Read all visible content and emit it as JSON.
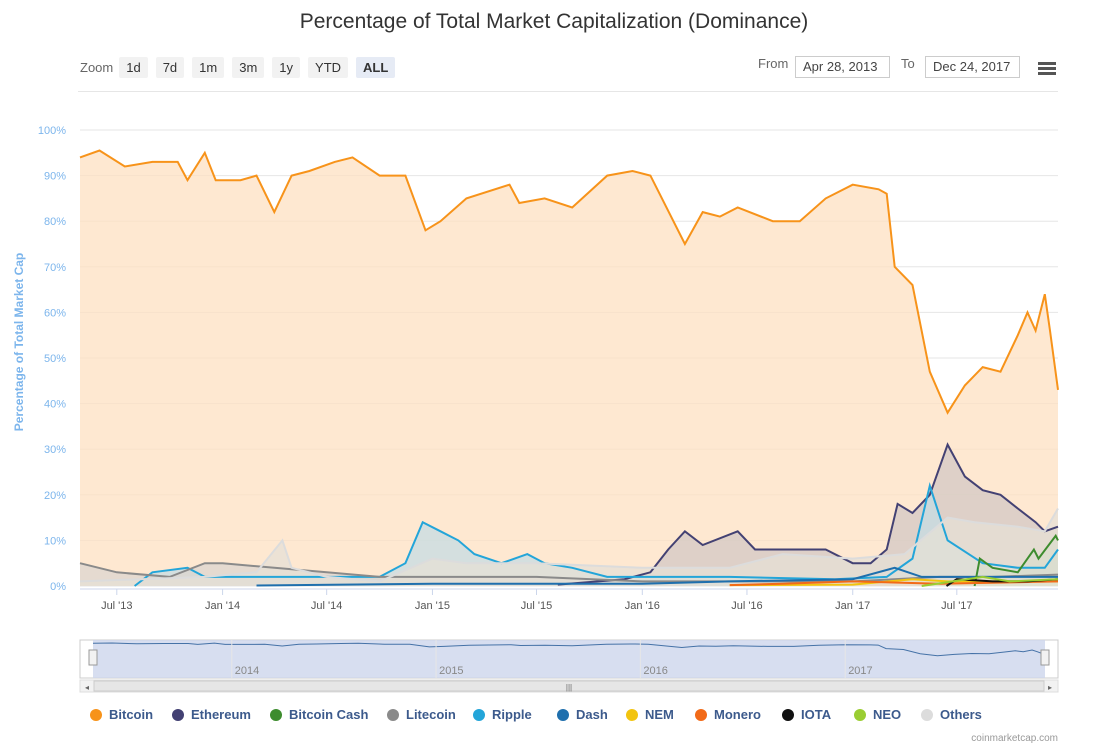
{
  "title": "Percentage of Total Market Capitalization (Dominance)",
  "zoom": {
    "label": "Zoom",
    "buttons": [
      "1d",
      "7d",
      "1m",
      "3m",
      "1y",
      "YTD",
      "ALL"
    ],
    "active": "ALL"
  },
  "range": {
    "from_label": "From",
    "from": "Apr 28, 2013",
    "to_label": "To",
    "to": "Dec 24, 2017"
  },
  "credit": "coinmarketcap.com",
  "navigator": {
    "year_labels": [
      "2014",
      "2015",
      "2016",
      "2017"
    ]
  },
  "colors": {
    "bitcoin": "#f7931a",
    "ethereum": "#434173",
    "bitcoin_cash": "#3d8c2e",
    "litecoin": "#8a8a8a",
    "ripple": "#23a5d9",
    "dash": "#1f6fad",
    "nem": "#f2c40f",
    "monero": "#f26a18",
    "iota": "#111111",
    "neo": "#9acd32",
    "others": "#dcdcdc"
  },
  "chart_data": {
    "type": "area",
    "title": "Percentage of Total Market Capitalization (Dominance)",
    "ylabel": "Percentage of Total Market Cap",
    "ylim": [
      0,
      100
    ],
    "y_ticks": [
      "0%",
      "10%",
      "20%",
      "30%",
      "40%",
      "50%",
      "60%",
      "70%",
      "80%",
      "90%",
      "100%"
    ],
    "x_ticks": [
      {
        "label": "Jul '13",
        "date": "2013-07-01"
      },
      {
        "label": "Jan '14",
        "date": "2014-01-01"
      },
      {
        "label": "Jul '14",
        "date": "2014-07-01"
      },
      {
        "label": "Jan '15",
        "date": "2015-01-01"
      },
      {
        "label": "Jul '15",
        "date": "2015-07-01"
      },
      {
        "label": "Jan '16",
        "date": "2016-01-01"
      },
      {
        "label": "Jul '16",
        "date": "2016-07-01"
      },
      {
        "label": "Jan '17",
        "date": "2017-01-01"
      },
      {
        "label": "Jul '17",
        "date": "2017-07-01"
      }
    ],
    "x_range": [
      "2013-04-28",
      "2017-12-24"
    ],
    "legend_position": "bottom",
    "grid": true,
    "series": [
      {
        "name": "Bitcoin",
        "color": "#f7931a",
        "fill": "#fde0c2",
        "points": [
          [
            "2013-04-28",
            94
          ],
          [
            "2013-06-01",
            95.5
          ],
          [
            "2013-07-15",
            92
          ],
          [
            "2013-09-01",
            93
          ],
          [
            "2013-10-15",
            93
          ],
          [
            "2013-11-01",
            89
          ],
          [
            "2013-12-01",
            95
          ],
          [
            "2013-12-20",
            89
          ],
          [
            "2014-02-01",
            89
          ],
          [
            "2014-03-01",
            90
          ],
          [
            "2014-04-01",
            82
          ],
          [
            "2014-05-01",
            90
          ],
          [
            "2014-06-01",
            91
          ],
          [
            "2014-07-15",
            93
          ],
          [
            "2014-08-15",
            94
          ],
          [
            "2014-10-01",
            90
          ],
          [
            "2014-11-15",
            90
          ],
          [
            "2014-12-20",
            78
          ],
          [
            "2015-01-15",
            80
          ],
          [
            "2015-03-01",
            85
          ],
          [
            "2015-05-15",
            88
          ],
          [
            "2015-06-01",
            84
          ],
          [
            "2015-07-15",
            85
          ],
          [
            "2015-09-01",
            83
          ],
          [
            "2015-11-01",
            90
          ],
          [
            "2015-12-15",
            91
          ],
          [
            "2016-01-15",
            90
          ],
          [
            "2016-03-15",
            75
          ],
          [
            "2016-04-15",
            82
          ],
          [
            "2016-05-15",
            81
          ],
          [
            "2016-06-15",
            83
          ],
          [
            "2016-08-15",
            80
          ],
          [
            "2016-10-01",
            80
          ],
          [
            "2016-11-15",
            85
          ],
          [
            "2017-01-01",
            88
          ],
          [
            "2017-02-15",
            87
          ],
          [
            "2017-03-01",
            86
          ],
          [
            "2017-03-15",
            70
          ],
          [
            "2017-04-15",
            66
          ],
          [
            "2017-05-15",
            47
          ],
          [
            "2017-06-15",
            38
          ],
          [
            "2017-07-15",
            44
          ],
          [
            "2017-08-15",
            48
          ],
          [
            "2017-09-15",
            47
          ],
          [
            "2017-10-15",
            55
          ],
          [
            "2017-11-01",
            60
          ],
          [
            "2017-11-15",
            56
          ],
          [
            "2017-12-01",
            64
          ],
          [
            "2017-12-10",
            56
          ],
          [
            "2017-12-24",
            43
          ]
        ]
      },
      {
        "name": "Ethereum",
        "color": "#434173",
        "fill": "#d3c8c4",
        "points": [
          [
            "2015-08-07",
            0.3
          ],
          [
            "2015-12-01",
            1.5
          ],
          [
            "2016-01-15",
            3
          ],
          [
            "2016-02-15",
            8
          ],
          [
            "2016-03-15",
            12
          ],
          [
            "2016-04-15",
            9
          ],
          [
            "2016-06-15",
            12
          ],
          [
            "2016-07-15",
            8
          ],
          [
            "2016-09-15",
            8
          ],
          [
            "2016-11-15",
            8
          ],
          [
            "2017-01-01",
            5
          ],
          [
            "2017-02-01",
            5
          ],
          [
            "2017-03-01",
            8
          ],
          [
            "2017-03-20",
            18
          ],
          [
            "2017-04-15",
            16
          ],
          [
            "2017-05-15",
            20
          ],
          [
            "2017-06-15",
            31
          ],
          [
            "2017-07-15",
            24
          ],
          [
            "2017-08-15",
            21
          ],
          [
            "2017-09-15",
            20
          ],
          [
            "2017-10-15",
            17
          ],
          [
            "2017-11-15",
            14
          ],
          [
            "2017-12-01",
            12
          ],
          [
            "2017-12-24",
            13
          ]
        ]
      },
      {
        "name": "Ripple",
        "color": "#23a5d9",
        "fill": "#c6dce3",
        "points": [
          [
            "2013-08-01",
            0
          ],
          [
            "2013-09-01",
            3
          ],
          [
            "2013-11-01",
            4
          ],
          [
            "2013-12-01",
            2
          ],
          [
            "2014-06-01",
            2
          ],
          [
            "2014-10-01",
            2
          ],
          [
            "2014-11-15",
            5
          ],
          [
            "2014-12-15",
            14
          ],
          [
            "2015-01-15",
            12
          ],
          [
            "2015-02-15",
            10
          ],
          [
            "2015-03-15",
            7
          ],
          [
            "2015-05-01",
            5
          ],
          [
            "2015-06-15",
            7
          ],
          [
            "2015-07-15",
            5
          ],
          [
            "2015-09-01",
            4
          ],
          [
            "2015-11-01",
            2
          ],
          [
            "2016-06-01",
            2
          ],
          [
            "2016-12-01",
            1.5
          ],
          [
            "2017-03-01",
            2
          ],
          [
            "2017-04-15",
            6
          ],
          [
            "2017-05-15",
            22
          ],
          [
            "2017-06-15",
            10
          ],
          [
            "2017-08-15",
            5
          ],
          [
            "2017-10-15",
            4
          ],
          [
            "2017-12-01",
            4
          ],
          [
            "2017-12-24",
            8
          ]
        ]
      },
      {
        "name": "Litecoin",
        "color": "#8a8a8a",
        "fill": "#dcd6cf",
        "points": [
          [
            "2013-04-28",
            5
          ],
          [
            "2013-07-01",
            3
          ],
          [
            "2013-10-01",
            2
          ],
          [
            "2013-12-01",
            5
          ],
          [
            "2014-01-01",
            5
          ],
          [
            "2014-04-01",
            4
          ],
          [
            "2014-07-01",
            3
          ],
          [
            "2014-10-01",
            2
          ],
          [
            "2015-01-01",
            2
          ],
          [
            "2015-07-01",
            2
          ],
          [
            "2016-01-01",
            1
          ],
          [
            "2017-01-01",
            1
          ],
          [
            "2017-06-01",
            2
          ],
          [
            "2017-09-01",
            2
          ],
          [
            "2017-12-24",
            2.5
          ]
        ]
      },
      {
        "name": "Dash",
        "color": "#1f6fad",
        "fill": "#c9d4dc",
        "points": [
          [
            "2014-03-01",
            0.1
          ],
          [
            "2015-01-01",
            0.5
          ],
          [
            "2016-01-01",
            0.5
          ],
          [
            "2016-06-01",
            1
          ],
          [
            "2017-01-01",
            1.5
          ],
          [
            "2017-03-15",
            4
          ],
          [
            "2017-05-01",
            2
          ],
          [
            "2017-08-01",
            2
          ],
          [
            "2017-12-24",
            2
          ]
        ]
      },
      {
        "name": "Bitcoin Cash",
        "color": "#3d8c2e",
        "fill": "#b8d1b0",
        "points": [
          [
            "2017-08-01",
            0
          ],
          [
            "2017-08-10",
            6
          ],
          [
            "2017-09-01",
            4
          ],
          [
            "2017-10-15",
            3
          ],
          [
            "2017-11-12",
            8
          ],
          [
            "2017-11-20",
            6
          ],
          [
            "2017-12-20",
            11
          ],
          [
            "2017-12-24",
            10
          ]
        ]
      },
      {
        "name": "NEM",
        "color": "#f2c40f",
        "fill": "#f5e0a8",
        "points": [
          [
            "2016-06-01",
            0.2
          ],
          [
            "2017-01-01",
            0.3
          ],
          [
            "2017-04-15",
            1.5
          ],
          [
            "2017-06-15",
            1
          ],
          [
            "2017-09-01",
            1
          ],
          [
            "2017-12-24",
            1
          ]
        ]
      },
      {
        "name": "Monero",
        "color": "#f26a18",
        "fill": "#f6cfb0",
        "points": [
          [
            "2016-06-01",
            0.2
          ],
          [
            "2016-09-01",
            0.5
          ],
          [
            "2017-01-01",
            1
          ],
          [
            "2017-06-01",
            0.5
          ],
          [
            "2017-12-24",
            1
          ]
        ]
      },
      {
        "name": "IOTA",
        "color": "#111111",
        "fill": "#cccccc",
        "points": [
          [
            "2017-06-13",
            0
          ],
          [
            "2017-07-01",
            1.5
          ],
          [
            "2017-09-01",
            1
          ],
          [
            "2017-11-01",
            1
          ],
          [
            "2017-12-24",
            1.5
          ]
        ]
      },
      {
        "name": "NEO",
        "color": "#9acd32",
        "fill": "#d8ecb0",
        "points": [
          [
            "2017-05-01",
            0
          ],
          [
            "2017-08-15",
            2
          ],
          [
            "2017-10-01",
            1
          ],
          [
            "2017-12-24",
            1.5
          ]
        ]
      },
      {
        "name": "Others",
        "color": "#dcdcdc",
        "fill": "#e6e0d6",
        "points": [
          [
            "2013-04-28",
            1
          ],
          [
            "2013-12-01",
            2
          ],
          [
            "2014-03-01",
            3
          ],
          [
            "2014-04-15",
            10
          ],
          [
            "2014-05-01",
            4
          ],
          [
            "2014-07-01",
            2
          ],
          [
            "2014-10-01",
            1
          ],
          [
            "2015-01-01",
            6
          ],
          [
            "2015-03-01",
            5
          ],
          [
            "2015-07-01",
            5
          ],
          [
            "2016-01-01",
            4
          ],
          [
            "2016-06-01",
            4
          ],
          [
            "2016-09-01",
            7
          ],
          [
            "2017-01-01",
            6
          ],
          [
            "2017-04-01",
            7
          ],
          [
            "2017-06-15",
            15
          ],
          [
            "2017-08-01",
            14
          ],
          [
            "2017-10-15",
            13
          ],
          [
            "2017-12-01",
            12
          ],
          [
            "2017-12-24",
            17
          ]
        ]
      }
    ]
  }
}
